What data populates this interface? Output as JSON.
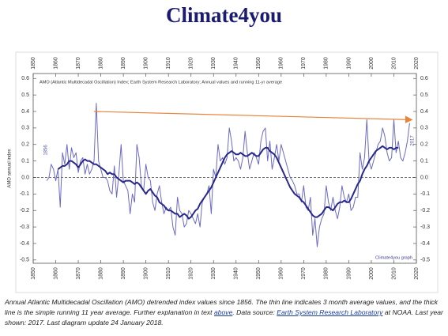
{
  "header": {
    "title": "Climate4you"
  },
  "chart_data": {
    "type": "line",
    "title": "AMO (Atlantic Multidecadal Oscillation) Index; Earth System Research Laboratory; Annual values and running 11-yr average",
    "y_label": "AMO annual index",
    "annotations": {
      "start_year": "1856",
      "end_year": "2017",
      "credit": "Climate4you graph"
    },
    "x": [
      1856,
      1857,
      1858,
      1859,
      1860,
      1861,
      1862,
      1863,
      1864,
      1865,
      1866,
      1867,
      1868,
      1869,
      1870,
      1871,
      1872,
      1873,
      1874,
      1875,
      1876,
      1877,
      1878,
      1879,
      1880,
      1881,
      1882,
      1883,
      1884,
      1885,
      1886,
      1887,
      1888,
      1889,
      1890,
      1891,
      1892,
      1893,
      1894,
      1895,
      1896,
      1897,
      1898,
      1899,
      1900,
      1901,
      1902,
      1903,
      1904,
      1905,
      1906,
      1907,
      1908,
      1909,
      1910,
      1911,
      1912,
      1913,
      1914,
      1915,
      1916,
      1917,
      1918,
      1919,
      1920,
      1921,
      1922,
      1923,
      1924,
      1925,
      1926,
      1927,
      1928,
      1929,
      1930,
      1931,
      1932,
      1933,
      1934,
      1935,
      1936,
      1937,
      1938,
      1939,
      1940,
      1941,
      1942,
      1943,
      1944,
      1945,
      1946,
      1947,
      1948,
      1949,
      1950,
      1951,
      1952,
      1953,
      1954,
      1955,
      1956,
      1957,
      1958,
      1959,
      1960,
      1961,
      1962,
      1963,
      1964,
      1965,
      1966,
      1967,
      1968,
      1969,
      1970,
      1971,
      1972,
      1973,
      1974,
      1975,
      1976,
      1977,
      1978,
      1979,
      1980,
      1981,
      1982,
      1983,
      1984,
      1985,
      1986,
      1987,
      1988,
      1989,
      1990,
      1991,
      1992,
      1993,
      1994,
      1995,
      1996,
      1997,
      1998,
      1999,
      2000,
      2001,
      2002,
      2003,
      2004,
      2005,
      2006,
      2007,
      2008,
      2009,
      2010,
      2011,
      2012,
      2013,
      2014,
      2015,
      2016,
      2017
    ],
    "series": [
      {
        "name": "Annual values",
        "color": "#6a6ac4",
        "width": 1,
        "values": [
          -0.02,
          0.0,
          0.08,
          0.05,
          -0.02,
          0.05,
          -0.18,
          0.15,
          0.08,
          0.2,
          0.05,
          0.18,
          0.12,
          0.15,
          0.03,
          0.1,
          0.12,
          0.02,
          0.08,
          0.02,
          0.05,
          0.1,
          0.45,
          0.1,
          0.05,
          0.0,
          0.0,
          -0.02,
          -0.08,
          -0.1,
          0.07,
          -0.12,
          0.02,
          0.2,
          -0.02,
          -0.05,
          -0.08,
          -0.22,
          -0.1,
          -0.15,
          0.2,
          0.12,
          -0.05,
          -0.08,
          0.08,
          0.0,
          -0.02,
          -0.15,
          -0.2,
          -0.1,
          -0.05,
          -0.15,
          -0.22,
          -0.18,
          -0.2,
          -0.18,
          -0.3,
          -0.35,
          -0.12,
          -0.2,
          -0.22,
          -0.3,
          -0.28,
          -0.2,
          -0.22,
          -0.25,
          -0.28,
          -0.22,
          -0.3,
          -0.15,
          -0.12,
          -0.1,
          -0.05,
          -0.22,
          0.05,
          0.0,
          0.2,
          0.1,
          0.12,
          0.08,
          0.12,
          0.3,
          0.22,
          0.1,
          0.12,
          0.1,
          0.05,
          0.12,
          0.28,
          0.15,
          0.05,
          0.1,
          0.15,
          0.12,
          0.08,
          0.22,
          0.28,
          0.3,
          0.1,
          0.22,
          0.05,
          0.12,
          0.2,
          0.1,
          0.2,
          0.15,
          0.1,
          0.05,
          0.0,
          -0.02,
          -0.05,
          -0.1,
          -0.1,
          -0.15,
          -0.05,
          -0.18,
          -0.2,
          -0.12,
          -0.35,
          -0.25,
          -0.42,
          -0.3,
          -0.25,
          -0.22,
          -0.05,
          -0.15,
          -0.2,
          -0.12,
          -0.2,
          -0.25,
          -0.18,
          -0.05,
          -0.12,
          -0.15,
          -0.1,
          -0.2,
          -0.18,
          -0.12,
          -0.12,
          0.15,
          0.05,
          0.12,
          0.35,
          0.1,
          0.05,
          0.1,
          0.15,
          0.2,
          0.22,
          0.3,
          0.25,
          0.15,
          0.1,
          0.12,
          0.35,
          0.15,
          0.22,
          0.12,
          0.1,
          0.15,
          0.22,
          0.33
        ]
      },
      {
        "name": "Running 11-yr average",
        "color": "#28288c",
        "width": 2,
        "values": [
          null,
          null,
          null,
          null,
          null,
          0.05,
          0.06,
          0.07,
          0.07,
          0.08,
          0.1,
          0.1,
          0.09,
          0.08,
          0.06,
          0.08,
          0.1,
          0.11,
          0.1,
          0.1,
          0.09,
          0.08,
          0.08,
          0.07,
          0.06,
          0.05,
          0.04,
          0.02,
          0.03,
          0.02,
          0.02,
          0.0,
          -0.01,
          -0.02,
          -0.03,
          -0.02,
          -0.02,
          -0.02,
          -0.03,
          -0.04,
          -0.03,
          -0.04,
          -0.06,
          -0.08,
          -0.1,
          -0.08,
          -0.07,
          -0.09,
          -0.11,
          -0.12,
          -0.15,
          -0.16,
          -0.17,
          -0.19,
          -0.2,
          -0.2,
          -0.21,
          -0.22,
          -0.22,
          -0.24,
          -0.23,
          -0.22,
          -0.23,
          -0.25,
          -0.24,
          -0.22,
          -0.2,
          -0.19,
          -0.16,
          -0.14,
          -0.12,
          -0.1,
          -0.08,
          -0.06,
          -0.03,
          0.0,
          0.03,
          0.06,
          0.09,
          0.12,
          0.14,
          0.15,
          0.16,
          0.15,
          0.14,
          0.14,
          0.15,
          0.14,
          0.13,
          0.13,
          0.14,
          0.15,
          0.14,
          0.13,
          0.13,
          0.15,
          0.17,
          0.18,
          0.18,
          0.16,
          0.15,
          0.14,
          0.12,
          0.09,
          0.06,
          0.03,
          0.0,
          -0.03,
          -0.06,
          -0.08,
          -0.1,
          -0.11,
          -0.12,
          -0.14,
          -0.15,
          -0.17,
          -0.19,
          -0.21,
          -0.23,
          -0.24,
          -0.24,
          -0.23,
          -0.22,
          -0.2,
          -0.18,
          -0.18,
          -0.19,
          -0.2,
          -0.18,
          -0.16,
          -0.15,
          -0.15,
          -0.14,
          -0.15,
          -0.15,
          -0.13,
          -0.1,
          -0.07,
          -0.04,
          -0.02,
          0.02,
          0.05,
          0.07,
          0.1,
          0.12,
          0.14,
          0.16,
          0.17,
          0.18,
          0.19,
          0.18,
          0.17,
          0.18,
          0.18,
          0.17,
          0.18,
          0.18,
          null,
          null,
          null,
          null,
          null
        ]
      }
    ],
    "trend": {
      "x": [
        1877,
        2018
      ],
      "values": [
        0.4,
        0.35
      ],
      "color": "#e8843c"
    },
    "xlim": [
      1850,
      2020
    ],
    "xticks": [
      1850,
      1860,
      1870,
      1880,
      1890,
      1900,
      1910,
      1920,
      1930,
      1940,
      1950,
      1960,
      1970,
      1980,
      1990,
      2000,
      2010,
      2020
    ],
    "ylim": [
      -0.52,
      0.63
    ],
    "yticks": [
      0.6,
      0.5,
      0.4,
      0.3,
      0.2,
      0.1,
      {
        "value": 0,
        "label": "0.0"
      },
      -0.1,
      -0.2,
      -0.3,
      -0.4,
      -0.5
    ],
    "zero_line": true
  },
  "caption": [
    "Annual Atlantic Multidecadal Oscillation (AMO) detrended index values since 1856. The thin line indicates 3 month average values, and the thick line is the simple running 11 year average. Further explanation in text ",
    "above",
    ". Data source: ",
    "Earth System Research Laboratory",
    " at NOAA. Last year shown: 2017. Last diagram update 24 January 2018."
  ]
}
